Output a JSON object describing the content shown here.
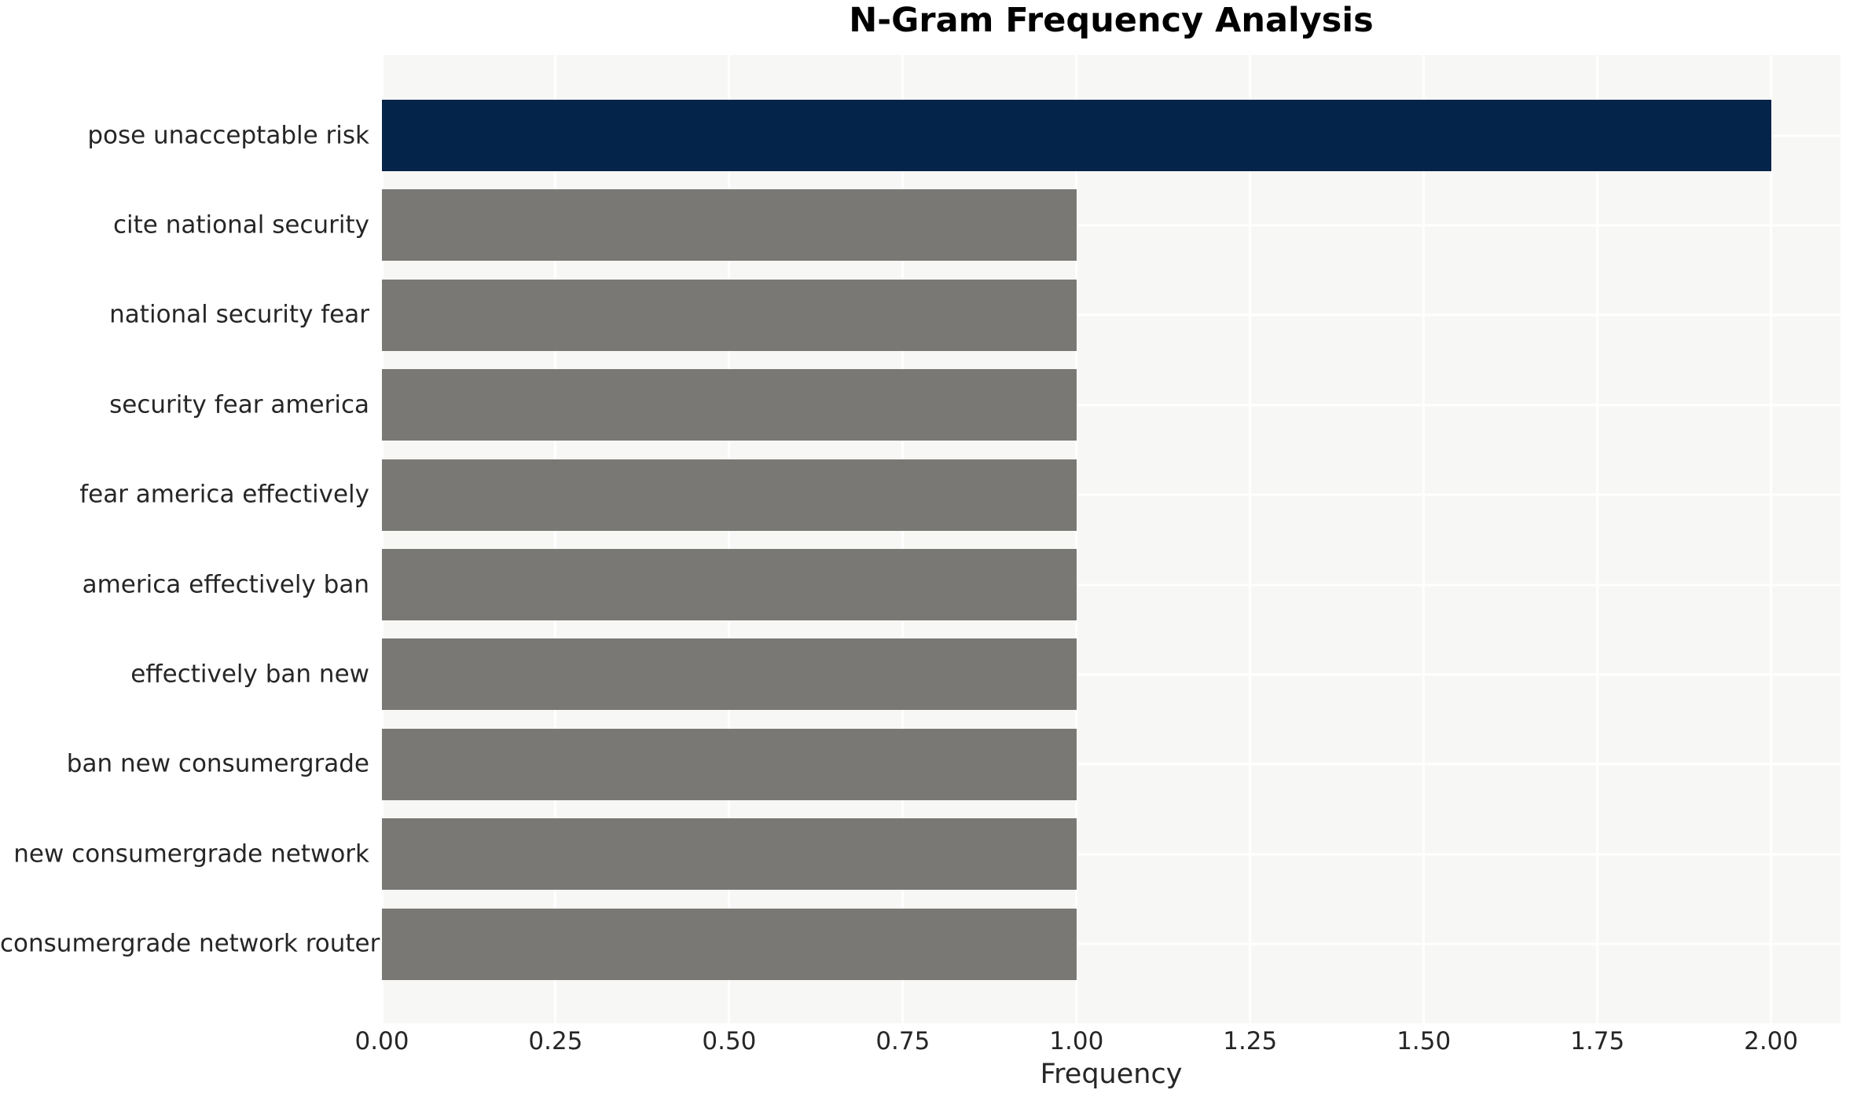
{
  "chart_data": {
    "type": "bar",
    "orientation": "horizontal",
    "title": "N-Gram Frequency Analysis",
    "xlabel": "Frequency",
    "ylabel": "",
    "categories": [
      "pose unacceptable risk",
      "cite national security",
      "national security fear",
      "security fear america",
      "fear america effectively",
      "america effectively ban",
      "effectively ban new",
      "ban new consumergrade",
      "new consumergrade network",
      "consumergrade network router"
    ],
    "values": [
      2,
      1,
      1,
      1,
      1,
      1,
      1,
      1,
      1,
      1
    ],
    "xlim": [
      0,
      2.1
    ],
    "xticks": [
      0,
      0.25,
      0.5,
      0.75,
      1,
      1.25,
      1.5,
      1.75,
      2
    ],
    "xtick_labels": [
      "0.00",
      "0.25",
      "0.50",
      "0.75",
      "1.00",
      "1.25",
      "1.50",
      "1.75",
      "2.00"
    ],
    "grid": true,
    "legend": false,
    "colors": {
      "bar_highlight": "#042449",
      "bar_default": "#7a7875",
      "plot_background": "#f7f7f6",
      "gridline": "#ffffff",
      "tick_text": "#262626",
      "title_text": "#000000"
    },
    "highlight_index": 0
  }
}
